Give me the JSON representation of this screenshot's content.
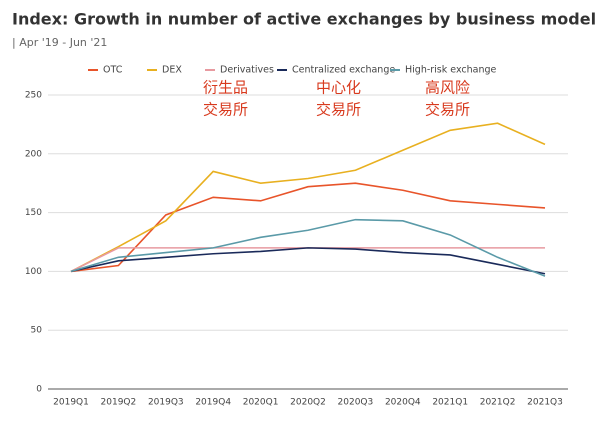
{
  "chart_data": {
    "type": "line",
    "title": "Index: Growth in number of active exchanges by business model",
    "subtitle": "| Apr '19 - Jun '21",
    "categories": [
      "2019Q1",
      "2019Q2",
      "2019Q3",
      "2019Q4",
      "2020Q1",
      "2020Q2",
      "2020Q3",
      "2020Q4",
      "2021Q1",
      "2021Q2",
      "2021Q3"
    ],
    "series": [
      {
        "name": "OTC",
        "color": "#e8542a",
        "values": [
          100,
          105,
          148,
          163,
          160,
          172,
          175,
          169,
          160,
          157,
          154
        ]
      },
      {
        "name": "DEX",
        "color": "#e8b020",
        "values": [
          100,
          121,
          143,
          185,
          175,
          179,
          186,
          203,
          220,
          226,
          208
        ]
      },
      {
        "name": "Derivatives",
        "color": "#e89aa0",
        "values": [
          100,
          120,
          120,
          120,
          120,
          120,
          120,
          120,
          120,
          120,
          120
        ]
      },
      {
        "name": "Centralized exchange",
        "color": "#1a2a5a",
        "values": [
          100,
          109,
          112,
          115,
          117,
          120,
          119,
          116,
          114,
          106,
          98
        ]
      },
      {
        "name": "High-risk exchange",
        "color": "#5a9aa8",
        "values": [
          100,
          112,
          116,
          120,
          129,
          135,
          144,
          143,
          131,
          112,
          96
        ]
      }
    ],
    "ylim": [
      0,
      250
    ],
    "yticks": [
      0,
      50,
      100,
      150,
      200,
      250
    ],
    "grid": true,
    "annotations": [
      [
        "衍生品",
        "交易所"
      ],
      [
        "中心化",
        "交易所"
      ],
      [
        "高风险",
        "交易所"
      ]
    ]
  }
}
